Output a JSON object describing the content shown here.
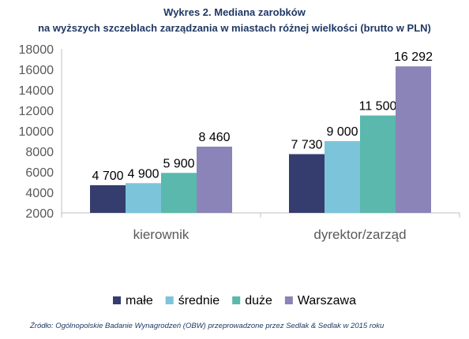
{
  "title_line1": "Wykres 2. Mediana zarobków",
  "title_line2": "na wyższych szczeblach zarządzania w miastach różnej wielkości (brutto w PLN)",
  "source": "Źródło: Ogólnopolskie Badanie Wynagrodzeń (OBW) przeprowadzone przez Sedlak & Sedlak w 2015 roku",
  "chart_data": {
    "type": "bar",
    "title": "Wykres 2. Mediana zarobków na wyższych szczeblach zarządzania w miastach różnej wielkości (brutto w PLN)",
    "categories": [
      "kierownik",
      "dyrektor/zarząd"
    ],
    "series": [
      {
        "name": "małe",
        "values": [
          4700,
          7730
        ],
        "labels": [
          "4 700",
          "7 730"
        ],
        "color": "#353d6e"
      },
      {
        "name": "średnie",
        "values": [
          4900,
          9000
        ],
        "labels": [
          "4 900",
          "9 000"
        ],
        "color": "#7cc4da"
      },
      {
        "name": "duże",
        "values": [
          5900,
          11500
        ],
        "labels": [
          "5 900",
          "11 500"
        ],
        "color": "#5ab8ac"
      },
      {
        "name": "Warszawa",
        "values": [
          8460,
          16292
        ],
        "labels": [
          "8 460",
          "16 292"
        ],
        "color": "#8a84b8"
      }
    ],
    "ylim": [
      2000,
      18000
    ],
    "yticks": [
      "2000",
      "4000",
      "6000",
      "8000",
      "10000",
      "12000",
      "14000",
      "16000",
      "18000"
    ],
    "xlabel": "",
    "ylabel": "",
    "grid": false,
    "legend_position": "bottom"
  }
}
